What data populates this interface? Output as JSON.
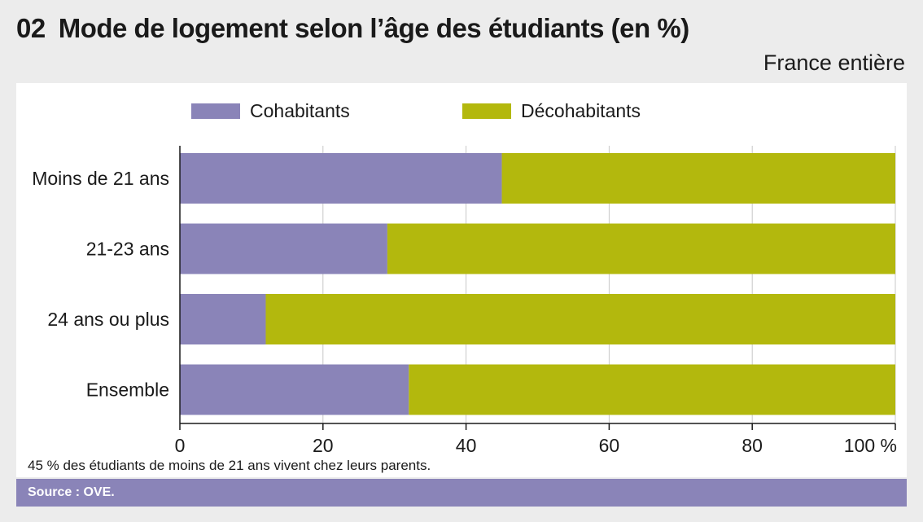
{
  "header": {
    "number": "02",
    "title": "Mode de logement selon l’âge des étudiants (en %)",
    "scope": "France entière"
  },
  "footer": {
    "note": "45 % des étudiants de moins de 21 ans vivent chez leurs parents.",
    "source": "Source : OVE."
  },
  "colors": {
    "cohabitants": "#8a84b8",
    "decohabitants": "#b3b80d",
    "grid": "#c8c8c8",
    "axis": "#1a1a1a"
  },
  "chart_data": {
    "type": "bar",
    "orientation": "horizontal",
    "stacked": true,
    "categories": [
      "Moins de 21 ans",
      "21-23 ans",
      "24 ans ou plus",
      "Ensemble"
    ],
    "series": [
      {
        "name": "Cohabitants",
        "values": [
          45,
          29,
          12,
          32
        ]
      },
      {
        "name": "Décohabitants",
        "values": [
          55,
          71,
          88,
          68
        ]
      }
    ],
    "xlim": [
      0,
      100
    ],
    "xticks": [
      0,
      20,
      40,
      60,
      80,
      100
    ],
    "xtick_labels": [
      "0",
      "20",
      "40",
      "60",
      "80",
      "100 %"
    ],
    "grid": true,
    "legend_position": "top"
  }
}
